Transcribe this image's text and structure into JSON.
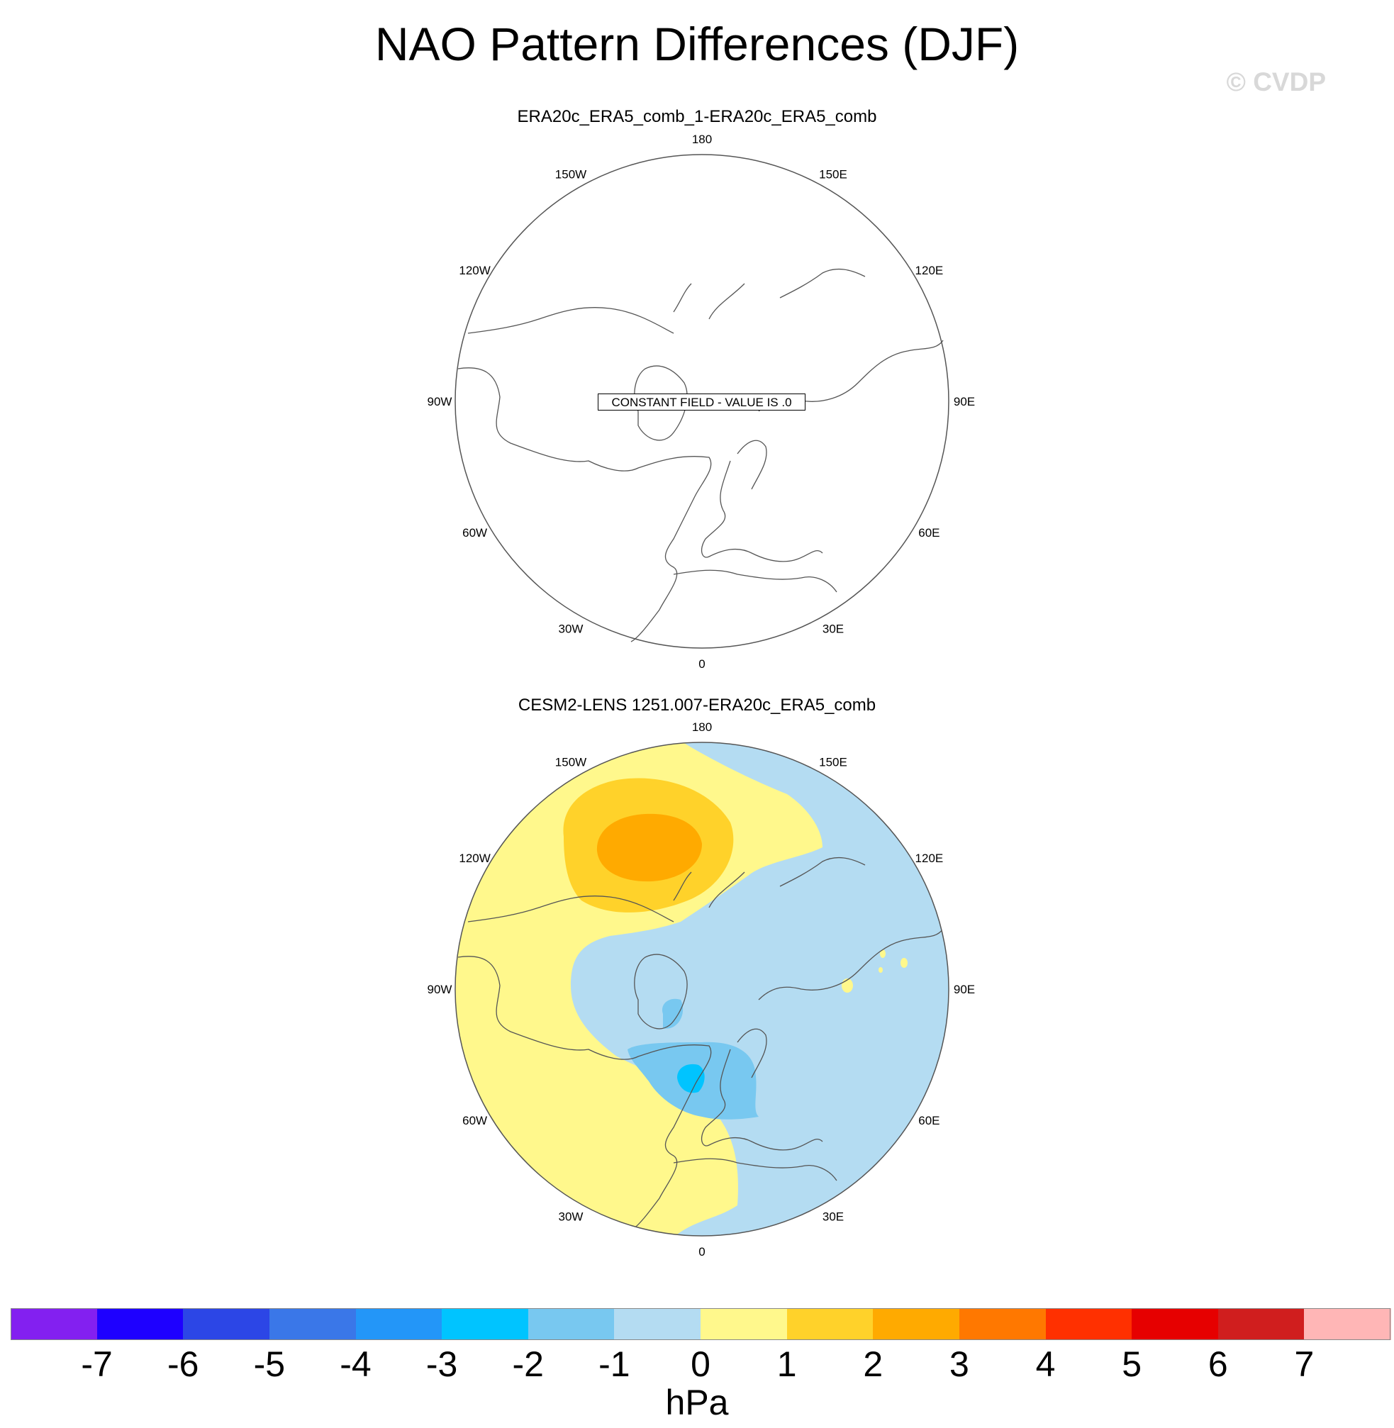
{
  "title": "NAO Pattern Differences (DJF)",
  "copyright": "© CVDP",
  "panels": [
    {
      "title": "ERA20c_ERA5_comb_1-ERA20c_ERA5_comb",
      "annotation": "CONSTANT FIELD - VALUE IS .0"
    },
    {
      "title": "CESM2-LENS 1251.007-ERA20c_ERA5_comb"
    }
  ],
  "longitude_labels": [
    "180",
    "150E",
    "120E",
    "90E",
    "60E",
    "30E",
    "0",
    "30W",
    "60W",
    "90W",
    "120W",
    "150W"
  ],
  "colorbar": {
    "units": "hPa",
    "levels": [
      "-7",
      "-6",
      "-5",
      "-4",
      "-3",
      "-2",
      "-1",
      "0",
      "1",
      "2",
      "3",
      "4",
      "5",
      "6",
      "7"
    ],
    "colors": [
      "#8320f0",
      "#1e00ff",
      "#2c46e6",
      "#3a77e8",
      "#2396f8",
      "#00c4ff",
      "#78c8f0",
      "#b4dcf2",
      "#fff88c",
      "#ffd22a",
      "#ffaa00",
      "#ff7800",
      "#ff3000",
      "#e60000",
      "#d01e1e",
      "#ffb6b6"
    ]
  }
}
